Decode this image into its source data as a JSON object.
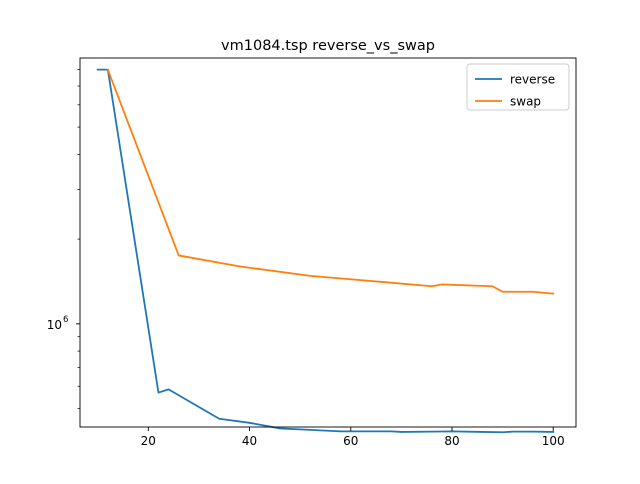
{
  "chart_data": {
    "type": "line",
    "title": "vm1084.tsp  reverse_vs_swap",
    "xlabel": "",
    "ylabel": "",
    "xlim": [
      6.5,
      104.5
    ],
    "ylim": [
      430000,
      8800000
    ],
    "yscale": "log",
    "x_ticks": [
      20,
      40,
      60,
      80,
      100
    ],
    "x_tick_labels": [
      "20",
      "40",
      "60",
      "80",
      "100"
    ],
    "y_ticks": [
      1000000
    ],
    "y_tick_base": "10",
    "y_tick_exp": "6",
    "grid": false,
    "legend_position": "top-right",
    "series": [
      {
        "name": "reverse",
        "color": "#1f77b4",
        "x": [
          10,
          12,
          22,
          24,
          34,
          40,
          46,
          52,
          58,
          64,
          68,
          70,
          76,
          80,
          86,
          90,
          92,
          96,
          100
        ],
        "y": [
          8000000,
          8000000,
          570000,
          585000,
          460000,
          445000,
          425000,
          420000,
          415000,
          415000,
          415000,
          413000,
          414000,
          415000,
          413000,
          412000,
          414000,
          414000,
          413000
        ]
      },
      {
        "name": "swap",
        "color": "#ff7f0e",
        "x": [
          12,
          26,
          38,
          52,
          64,
          76,
          78,
          88,
          90,
          96,
          100
        ],
        "y": [
          8000000,
          1750000,
          1600000,
          1480000,
          1420000,
          1360000,
          1380000,
          1360000,
          1300000,
          1300000,
          1280000
        ]
      }
    ]
  }
}
